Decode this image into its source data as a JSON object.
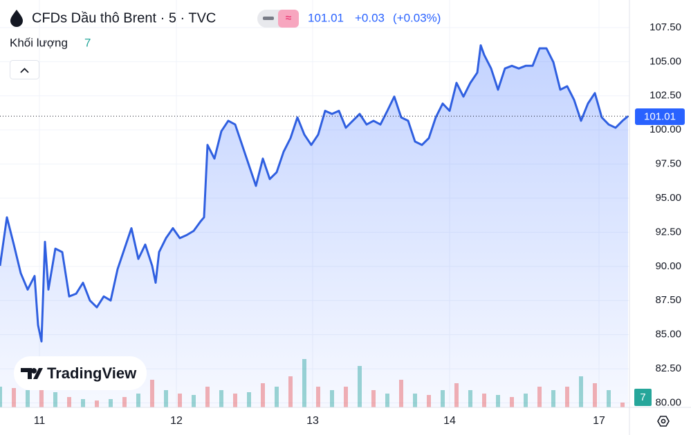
{
  "chart_data": {
    "type": "area",
    "title": "CFDs Dầu thô Brent · 5 · TVC",
    "last_price": 101.01,
    "change": {
      "value": 0.03,
      "label": "+0.03"
    },
    "change_pct": {
      "value": 0.03,
      "label": "(+0.03%)"
    },
    "volume_label": "Khối lượng",
    "watermark": "TradingView",
    "color": "#2f5fe0",
    "x": [
      0,
      10,
      20,
      30,
      40,
      50,
      55,
      60,
      65,
      70,
      80,
      90,
      100,
      110,
      120,
      130,
      140,
      150,
      160,
      170,
      180,
      190,
      200,
      210,
      220,
      225,
      230,
      240,
      250,
      260,
      270,
      280,
      290,
      295,
      300,
      310,
      320,
      330,
      340,
      350,
      360,
      370,
      380,
      390,
      400,
      410,
      420,
      430,
      440,
      450,
      460,
      470,
      480,
      490,
      500,
      510,
      520,
      530,
      540,
      550,
      560,
      570,
      580,
      590,
      600,
      610,
      620,
      630,
      640,
      650,
      660,
      670,
      680,
      690,
      695,
      700,
      710,
      720,
      730,
      740,
      750,
      760,
      770,
      780,
      790,
      800,
      810,
      820,
      830,
      840,
      850,
      860,
      870,
      880,
      890,
      900,
      908
    ],
    "values": [
      90.04,
      93.6,
      91.6,
      89.5,
      88.3,
      89.3,
      85.7,
      84.5,
      91.8,
      88.3,
      91.3,
      91.05,
      87.8,
      88.0,
      88.8,
      87.5,
      87.0,
      87.8,
      87.5,
      89.8,
      91.3,
      92.8,
      90.55,
      91.6,
      90.04,
      88.8,
      91.05,
      92.07,
      92.8,
      92.07,
      92.3,
      92.6,
      93.3,
      93.6,
      98.9,
      97.9,
      99.9,
      100.67,
      100.4,
      98.9,
      97.4,
      95.9,
      97.9,
      96.4,
      96.9,
      98.4,
      99.4,
      100.92,
      99.66,
      98.9,
      99.66,
      101.4,
      101.17,
      101.4,
      100.16,
      100.67,
      101.17,
      100.4,
      100.67,
      100.4,
      101.4,
      102.44,
      100.92,
      100.67,
      99.15,
      98.9,
      99.4,
      100.92,
      101.93,
      101.4,
      103.45,
      102.44,
      103.45,
      104.2,
      106.2,
      105.5,
      104.5,
      102.95,
      104.5,
      104.7,
      104.5,
      104.7,
      104.7,
      105.98,
      105.98,
      104.97,
      102.95,
      103.2,
      102.2,
      100.67,
      101.93,
      102.7,
      100.92,
      100.4,
      100.16,
      100.67,
      101.01
    ],
    "volume": {
      "axis": "y2",
      "up_color": "#26a69a",
      "down_color": "#ef5350",
      "x": [
        0,
        20,
        40,
        60,
        80,
        100,
        120,
        140,
        160,
        180,
        200,
        220,
        240,
        260,
        280,
        300,
        320,
        340,
        360,
        380,
        400,
        420,
        440,
        460,
        480,
        500,
        520,
        540,
        560,
        580,
        600,
        620,
        640,
        660,
        680,
        700,
        720,
        740,
        760,
        780,
        800,
        820,
        840,
        860,
        880,
        900
      ],
      "values": [
        30,
        28,
        25,
        30,
        22,
        15,
        12,
        10,
        12,
        15,
        20,
        40,
        25,
        20,
        18,
        30,
        25,
        20,
        22,
        35,
        30,
        45,
        70,
        30,
        25,
        30,
        60,
        25,
        20,
        40,
        20,
        18,
        25,
        35,
        25,
        20,
        18,
        15,
        20,
        30,
        25,
        30,
        45,
        35,
        25,
        7
      ]
    },
    "xlim": [
      0,
      910
    ],
    "xticks": [
      {
        "value": 57,
        "label": "11"
      },
      {
        "value": 255,
        "label": "12"
      },
      {
        "value": 452,
        "label": "13"
      },
      {
        "value": 650,
        "label": "14"
      },
      {
        "value": 866,
        "label": "17"
      }
    ],
    "ylim": [
      79.67,
      109.52
    ],
    "yticks": [
      {
        "value": 80,
        "label": "80.00"
      },
      {
        "value": 82.5,
        "label": "82.50"
      },
      {
        "value": 85,
        "label": "85.00"
      },
      {
        "value": 87.5,
        "label": "87.50"
      },
      {
        "value": 90,
        "label": "90.00"
      },
      {
        "value": 92.5,
        "label": "92.50"
      },
      {
        "value": 95,
        "label": "95.00"
      },
      {
        "value": 97.5,
        "label": "97.50"
      },
      {
        "value": 100,
        "label": "100.00"
      },
      {
        "value": 102.5,
        "label": "102.50"
      },
      {
        "value": 105,
        "label": "105.00"
      },
      {
        "value": 107.5,
        "label": "107.50"
      }
    ],
    "y2lim": [
      0,
      590
    ],
    "grid": true
  }
}
